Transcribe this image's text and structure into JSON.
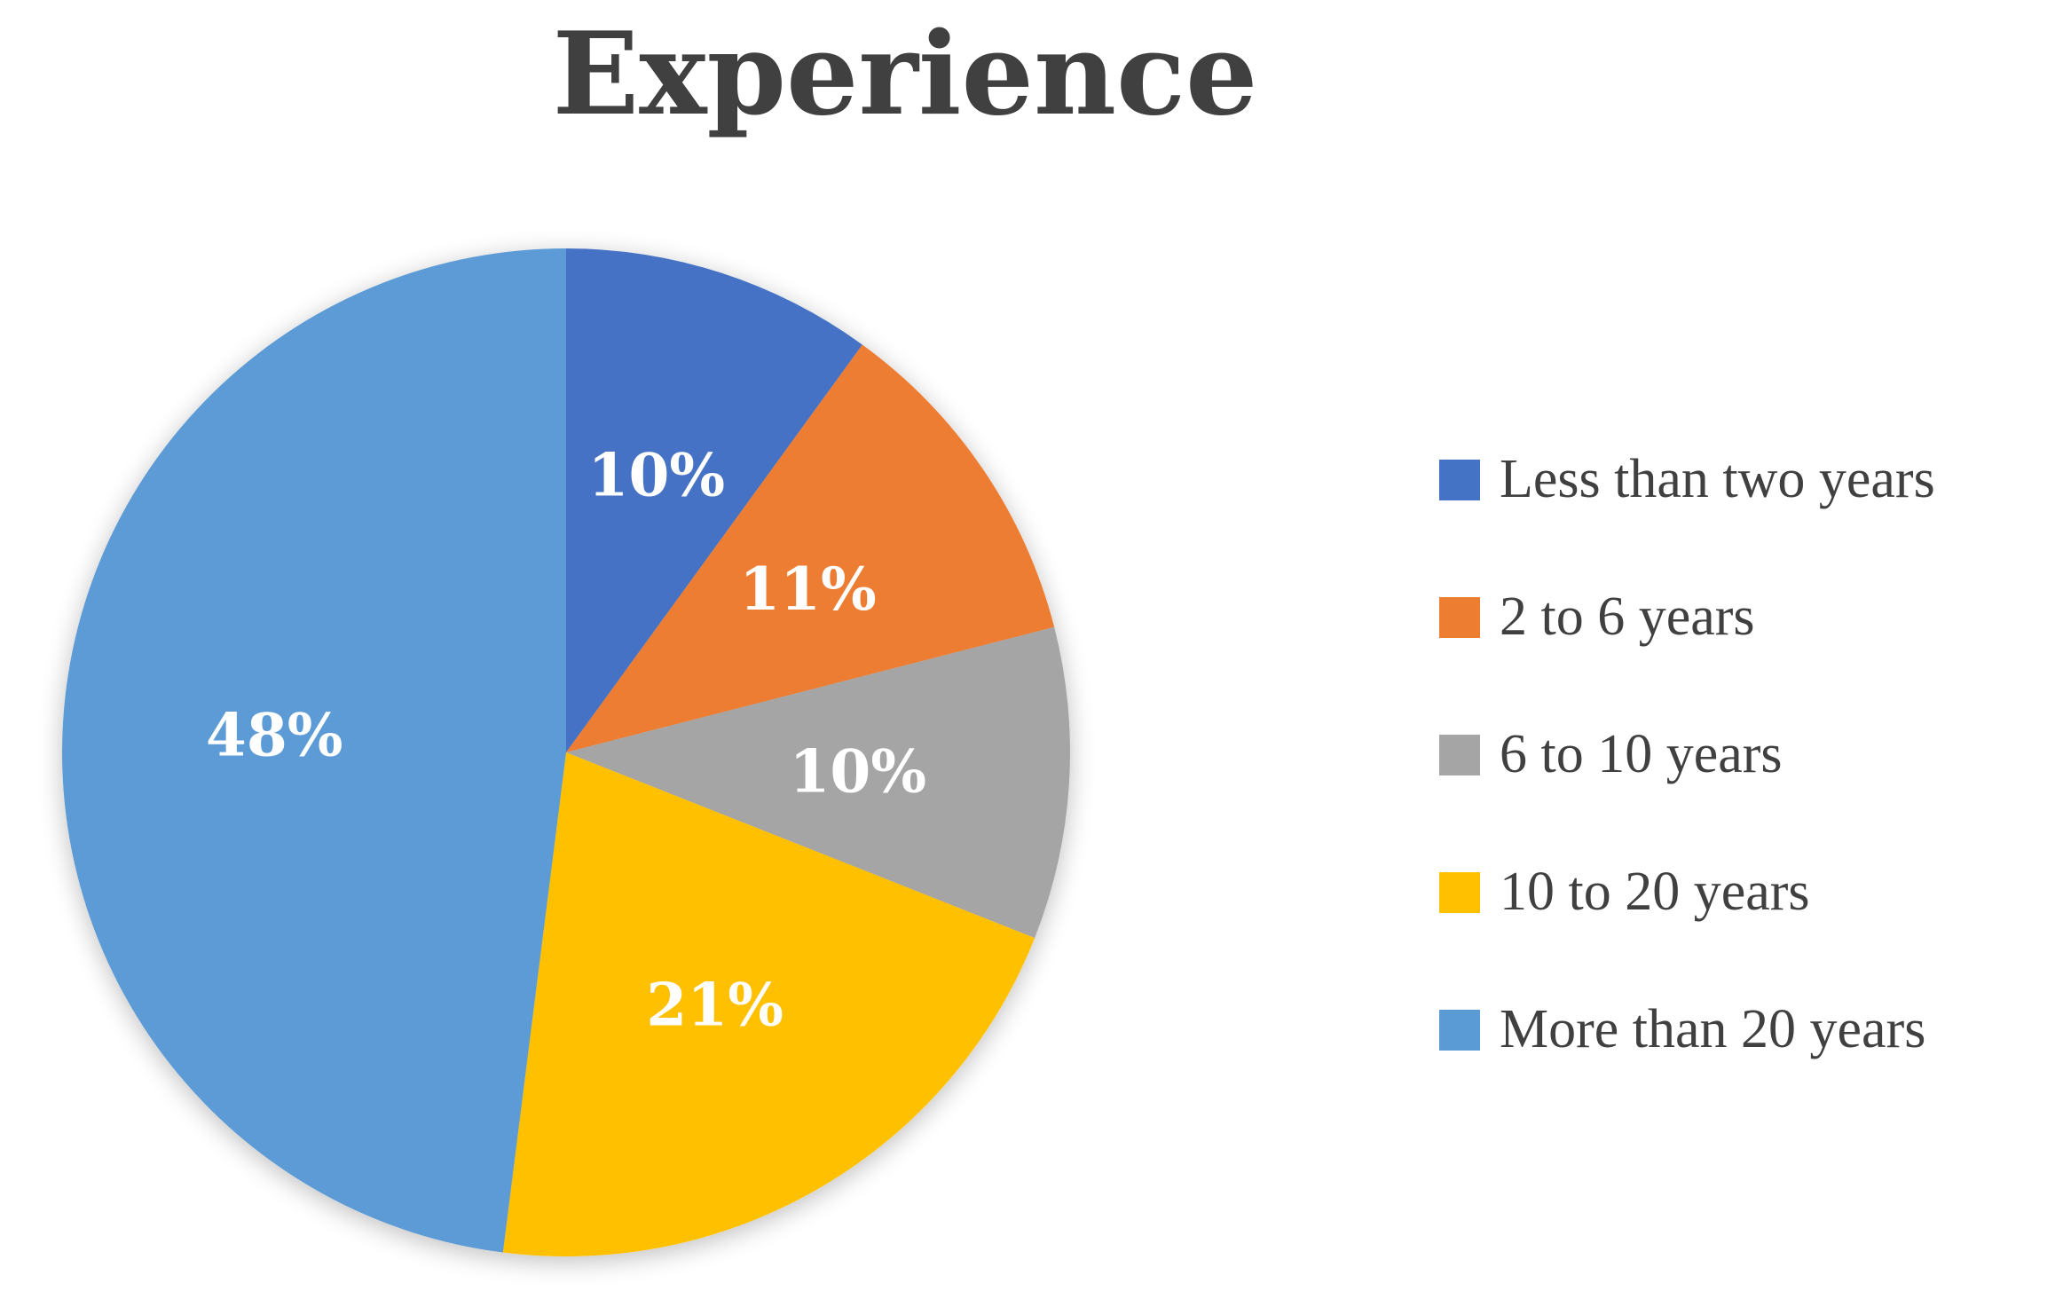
{
  "chart_data": {
    "type": "pie",
    "title": "Experience",
    "categories": [
      "Less than two years",
      "2 to 6 years",
      "6 to 10 years",
      "10 to 20 years",
      "More than 20 years"
    ],
    "values": [
      10,
      11,
      10,
      21,
      48
    ],
    "labels": [
      "10%",
      "11%",
      "10%",
      "21%",
      "48%"
    ],
    "colors": [
      "#4472C4",
      "#ED7D31",
      "#A5A5A5",
      "#FFC000",
      "#5B9BD5"
    ],
    "legend_position": "right",
    "start_angle": "top",
    "direction": "clockwise"
  }
}
